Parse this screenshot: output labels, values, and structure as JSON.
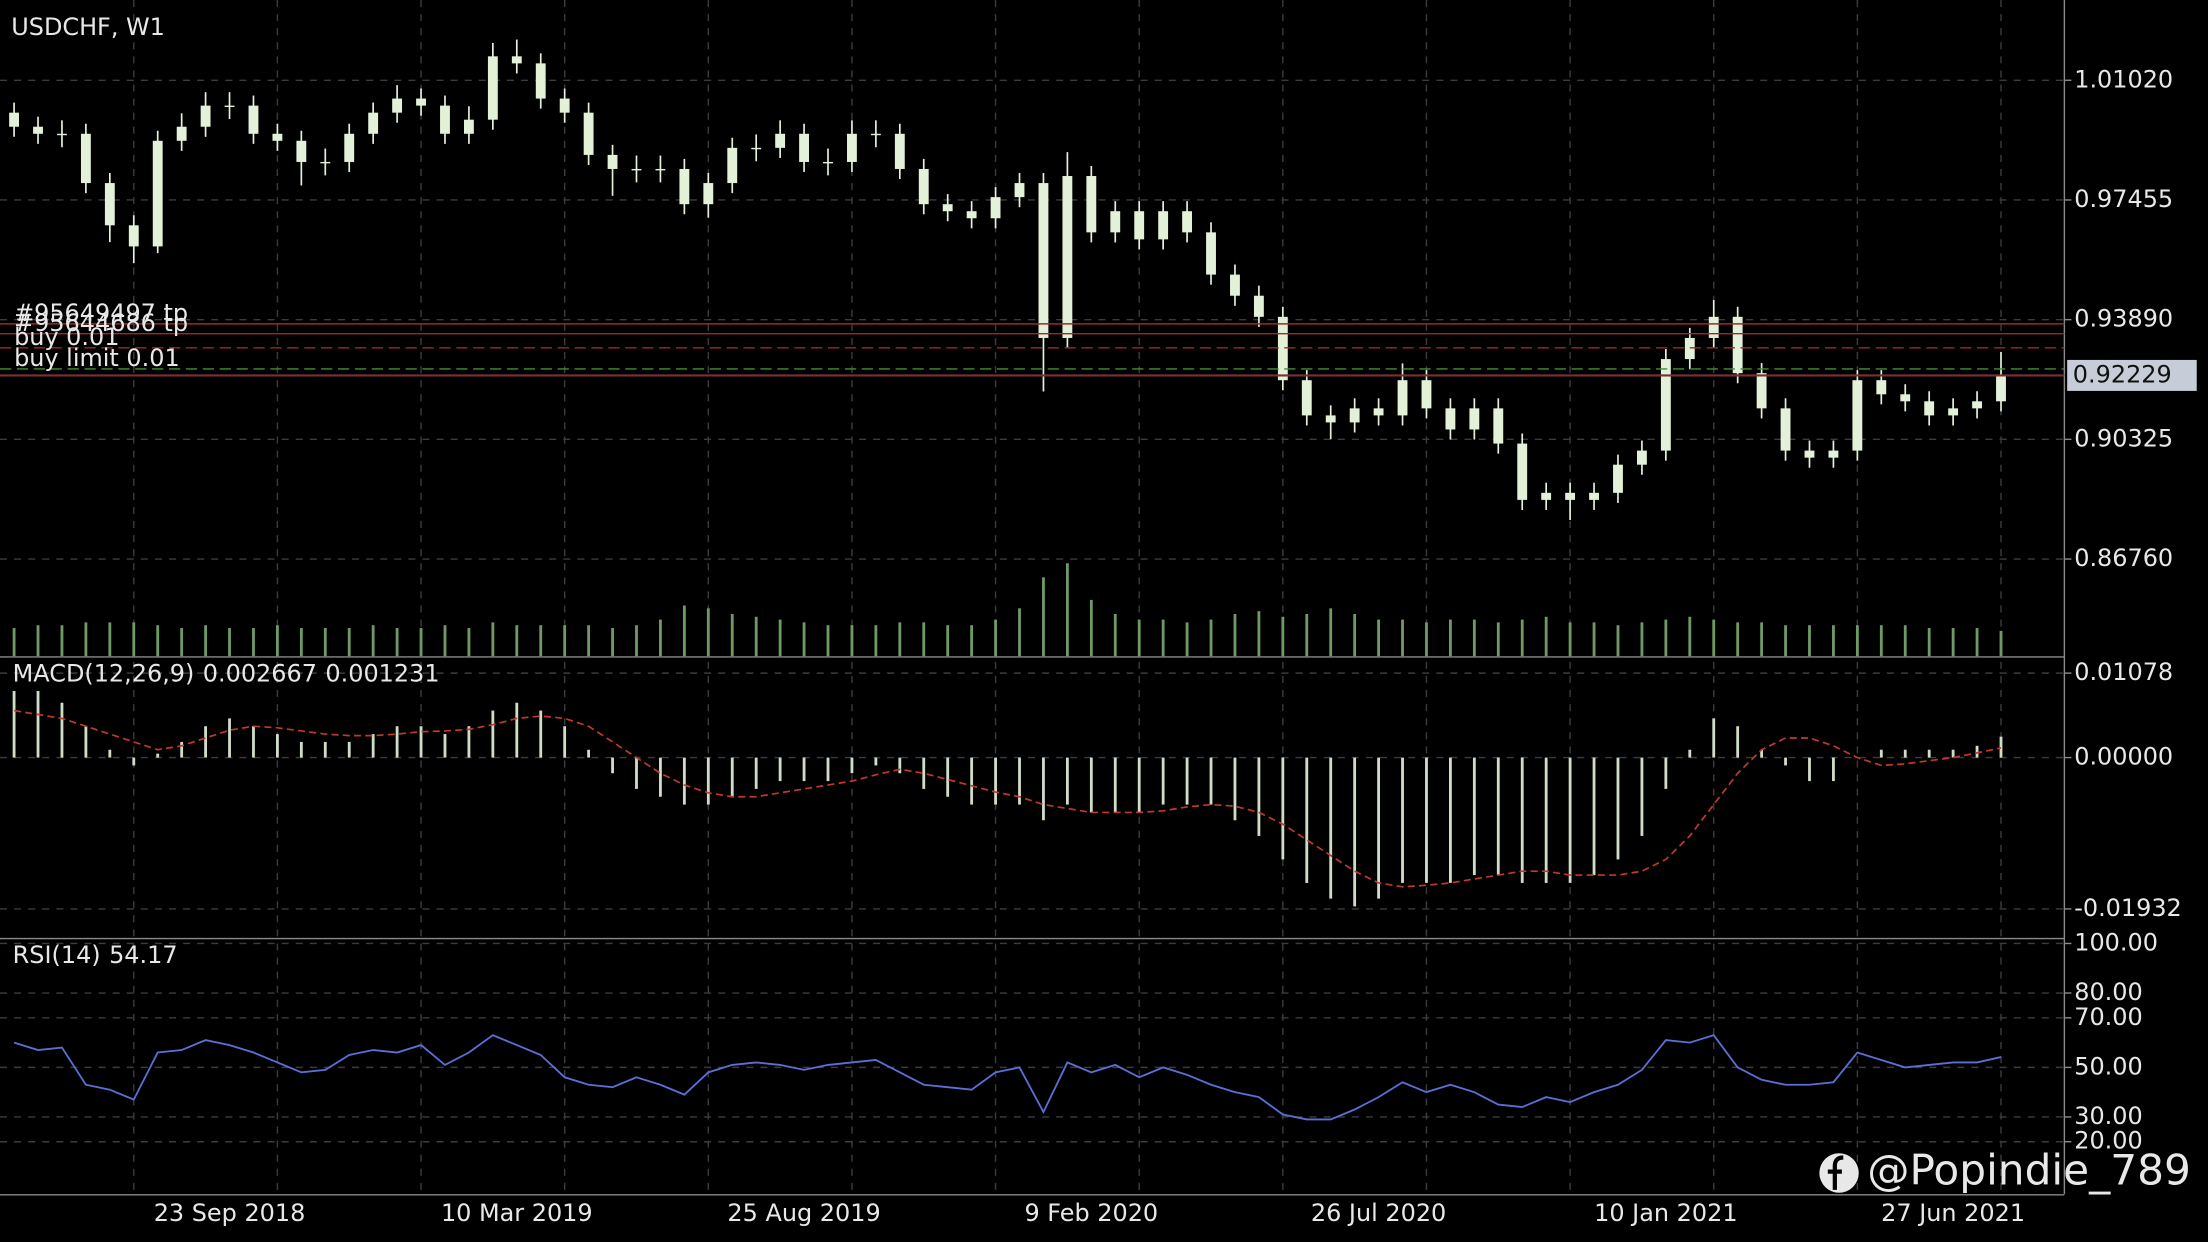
{
  "chart_data": [
    {
      "type": "candlestick",
      "title": "USDCHF, W1",
      "categories": [
        null,
        null,
        null,
        null,
        null,
        null,
        null,
        null,
        null,
        "23 Sep 2018",
        null,
        null,
        null,
        null,
        null,
        null,
        null,
        null,
        null,
        null,
        null,
        "10 Mar 2019",
        null,
        null,
        null,
        null,
        null,
        null,
        null,
        null,
        null,
        null,
        null,
        "25 Aug 2019",
        null,
        null,
        null,
        null,
        null,
        null,
        null,
        null,
        null,
        null,
        null,
        "9 Feb 2020",
        null,
        null,
        null,
        null,
        null,
        null,
        null,
        null,
        null,
        null,
        null,
        "26 Jul 2020",
        null,
        null,
        null,
        null,
        null,
        null,
        null,
        null,
        null,
        null,
        null,
        "10 Jan 2021",
        null,
        null,
        null,
        null,
        null,
        null,
        null,
        null,
        null,
        null,
        null,
        "27 Jun 2021",
        null,
        null
      ],
      "open": [
        1.00055,
        0.99636,
        0.99426,
        0.99426,
        0.97958,
        0.967,
        0.96071,
        0.99217,
        0.99636,
        1.00265,
        1.00265,
        0.99426,
        0.99217,
        0.98587,
        0.98587,
        0.99426,
        1.00055,
        1.00475,
        1.00265,
        0.99426,
        0.99846,
        1.01733,
        1.01523,
        1.00475,
        1.00055,
        0.98797,
        0.98378,
        0.98378,
        0.98378,
        0.97329,
        0.97958,
        0.99007,
        0.99007,
        0.99426,
        0.98587,
        0.98587,
        0.99426,
        0.99426,
        0.98378,
        0.97329,
        0.9712,
        0.9691,
        0.97539,
        0.97958,
        0.93345,
        0.98168,
        0.9649,
        0.9712,
        0.96281,
        0.9712,
        0.9649,
        0.95232,
        0.94603,
        0.93974,
        0.92087,
        0.91038,
        0.90829,
        0.91248,
        0.91038,
        0.92087,
        0.91248,
        0.90619,
        0.91248,
        0.90199,
        0.88522,
        0.88732,
        0.88522,
        0.88732,
        0.8957,
        0.8999,
        0.92716,
        0.93345,
        0.93974,
        0.92296,
        0.91248,
        0.8999,
        0.8978,
        0.8999,
        0.92087,
        0.91667,
        0.91458,
        0.91038,
        0.91248,
        0.91458
      ],
      "high": [
        1.00355,
        0.99936,
        0.99826,
        0.99726,
        0.98258,
        0.97,
        0.99517,
        1.00036,
        1.00665,
        1.00665,
        1.00565,
        0.99726,
        0.99517,
        0.98987,
        0.99726,
        1.00355,
        1.00875,
        1.00775,
        1.00565,
        1.00246,
        1.02133,
        1.02233,
        1.01823,
        1.00775,
        1.00355,
        0.99097,
        0.98778,
        0.98778,
        0.98678,
        0.98258,
        0.99307,
        0.99407,
        0.99826,
        0.99726,
        0.98987,
        0.99826,
        0.99826,
        0.99726,
        0.98678,
        0.97629,
        0.9742,
        0.97839,
        0.98258,
        0.98258,
        0.98881,
        0.98468,
        0.9742,
        0.9742,
        0.9742,
        0.9742,
        0.9679,
        0.95532,
        0.94903,
        0.94274,
        0.92387,
        0.91338,
        0.91548,
        0.91548,
        0.92587,
        0.92387,
        0.91548,
        0.91548,
        0.91548,
        0.90499,
        0.89032,
        0.89032,
        0.89032,
        0.8987,
        0.9029,
        0.93016,
        0.93645,
        0.94474,
        0.94274,
        0.92596,
        0.91548,
        0.9029,
        0.9029,
        0.92387,
        0.92387,
        0.91967,
        0.91758,
        0.91548,
        0.91758,
        0.92929
      ],
      "low": [
        0.99336,
        0.99126,
        0.99026,
        0.97658,
        0.962,
        0.95571,
        0.95871,
        0.98917,
        0.99336,
        0.99865,
        0.99126,
        0.98917,
        0.97887,
        0.98187,
        0.98287,
        0.99126,
        0.99755,
        0.99965,
        0.99126,
        0.99126,
        0.99546,
        1.01223,
        1.00175,
        0.99755,
        0.98497,
        0.97578,
        0.97978,
        0.97978,
        0.97029,
        0.96929,
        0.97658,
        0.98607,
        0.98707,
        0.98287,
        0.98187,
        0.98287,
        0.99026,
        0.98078,
        0.97029,
        0.9682,
        0.9661,
        0.9661,
        0.97239,
        0.91751,
        0.93045,
        0.9619,
        0.9619,
        0.95981,
        0.95981,
        0.9619,
        0.94932,
        0.94303,
        0.93674,
        0.91787,
        0.90738,
        0.90329,
        0.90529,
        0.90738,
        0.90738,
        0.90948,
        0.90319,
        0.90319,
        0.89899,
        0.88222,
        0.88222,
        0.87922,
        0.88222,
        0.88432,
        0.8927,
        0.8969,
        0.92416,
        0.93045,
        0.91996,
        0.90948,
        0.8969,
        0.8948,
        0.8948,
        0.8969,
        0.91367,
        0.91158,
        0.90738,
        0.90738,
        0.90948,
        0.91158
      ],
      "close": [
        0.99636,
        0.99426,
        0.99426,
        0.97958,
        0.967,
        0.96071,
        0.99217,
        0.99636,
        1.00265,
        1.00265,
        0.99426,
        0.99217,
        0.98587,
        0.98587,
        0.99426,
        1.00055,
        1.00475,
        1.00265,
        0.99426,
        0.99846,
        1.01733,
        1.01523,
        1.00475,
        1.00055,
        0.98797,
        0.98378,
        0.98378,
        0.98378,
        0.97329,
        0.97958,
        0.99007,
        0.99007,
        0.99426,
        0.98587,
        0.98587,
        0.99426,
        0.99426,
        0.98378,
        0.97329,
        0.9712,
        0.9691,
        0.97539,
        0.97958,
        0.93345,
        0.98168,
        0.9649,
        0.9712,
        0.96281,
        0.9712,
        0.9649,
        0.95232,
        0.94603,
        0.93974,
        0.92087,
        0.91038,
        0.90829,
        0.91248,
        0.91038,
        0.92087,
        0.91248,
        0.90619,
        0.91248,
        0.90199,
        0.88522,
        0.88732,
        0.88522,
        0.88732,
        0.8957,
        0.8999,
        0.92716,
        0.93345,
        0.93974,
        0.92296,
        0.91248,
        0.8999,
        0.8978,
        0.8999,
        0.92087,
        0.91667,
        0.91458,
        0.91038,
        0.91248,
        0.91458,
        0.92229
      ],
      "volume": [
        20,
        22,
        22,
        24,
        24,
        24,
        22,
        20,
        22,
        20,
        20,
        22,
        20,
        20,
        20,
        22,
        20,
        20,
        22,
        20,
        24,
        22,
        22,
        22,
        22,
        20,
        22,
        26,
        36,
        34,
        30,
        28,
        26,
        24,
        22,
        22,
        22,
        24,
        24,
        22,
        22,
        26,
        34,
        56,
        66,
        40,
        30,
        26,
        26,
        24,
        26,
        30,
        32,
        28,
        30,
        34,
        30,
        26,
        26,
        24,
        26,
        26,
        24,
        26,
        28,
        24,
        24,
        22,
        24,
        26,
        28,
        26,
        24,
        24,
        22,
        22,
        22,
        22,
        22,
        22,
        20,
        20,
        20,
        18
      ],
      "candle_color": "#e3f1d9",
      "volume_color": "#6f9a66",
      "ylim": [
        0.83866,
        1.03201
      ],
      "yticks": [
        {
          "value": 1.0102,
          "label": "1.01020"
        },
        0.97455,
        {
          "value": 0.9389,
          "label": "0.93890"
        },
        0.90325,
        {
          "value": 0.8676,
          "label": "0.86760"
        }
      ],
      "grid": true,
      "current_price": 0.92229,
      "current_price_color": "#7a3030",
      "order_lines": [
        {
          "label": "#95649497 tp",
          "value": 0.93764,
          "color": "#a02828",
          "dashed": false
        },
        {
          "label": "#95644686 tp",
          "value": 0.93471,
          "color": "#a02828",
          "dashed": false
        },
        {
          "label": "buy 0.01",
          "value": 0.93052,
          "color": "#a02828",
          "dashed": true
        },
        {
          "label": "buy limit 0.01",
          "value": 0.92422,
          "color": "#3f8f3f",
          "dashed": true
        }
      ]
    },
    {
      "type": "macd",
      "title": "MACD(12,26,9)",
      "macd": [
        0.0085,
        0.0085,
        0.007,
        0.004,
        0.001,
        -0.001,
        0.0005,
        0.002,
        0.004,
        0.005,
        0.004,
        0.003,
        0.002,
        0.002,
        0.002,
        0.003,
        0.004,
        0.004,
        0.003,
        0.004,
        0.006,
        0.007,
        0.006,
        0.004,
        0.001,
        -0.002,
        -0.004,
        -0.005,
        -0.006,
        -0.006,
        -0.005,
        -0.004,
        -0.003,
        -0.003,
        -0.003,
        -0.002,
        -0.001,
        -0.002,
        -0.004,
        -0.005,
        -0.006,
        -0.006,
        -0.006,
        -0.008,
        -0.006,
        -0.007,
        -0.007,
        -0.007,
        -0.006,
        -0.006,
        -0.006,
        -0.008,
        -0.01,
        -0.013,
        -0.016,
        -0.018,
        -0.019,
        -0.018,
        -0.016,
        -0.016,
        -0.016,
        -0.015,
        -0.015,
        -0.016,
        -0.016,
        -0.016,
        -0.015,
        -0.013,
        -0.01,
        -0.004,
        0.001,
        0.005,
        0.004,
        0.001,
        -0.001,
        -0.003,
        -0.003,
        0.0,
        0.001,
        0.001,
        0.001,
        0.001,
        0.0015,
        0.002667
      ],
      "signal": [
        0.006,
        0.0055,
        0.005,
        0.004,
        0.003,
        0.002,
        0.001,
        0.0015,
        0.0025,
        0.0035,
        0.004,
        0.0038,
        0.0034,
        0.003,
        0.0028,
        0.0028,
        0.003,
        0.0033,
        0.0034,
        0.0036,
        0.0042,
        0.005,
        0.0053,
        0.005,
        0.004,
        0.002,
        0.0,
        -0.002,
        -0.0035,
        -0.0045,
        -0.005,
        -0.005,
        -0.0045,
        -0.004,
        -0.0035,
        -0.003,
        -0.0022,
        -0.0015,
        -0.002,
        -0.0028,
        -0.0036,
        -0.0044,
        -0.005,
        -0.006,
        -0.0065,
        -0.007,
        -0.007,
        -0.007,
        -0.0068,
        -0.0063,
        -0.006,
        -0.0062,
        -0.007,
        -0.0085,
        -0.0105,
        -0.0125,
        -0.0145,
        -0.016,
        -0.0165,
        -0.0163,
        -0.016,
        -0.0155,
        -0.015,
        -0.0145,
        -0.0145,
        -0.015,
        -0.015,
        -0.015,
        -0.0145,
        -0.013,
        -0.01,
        -0.006,
        -0.002,
        0.001,
        0.0025,
        0.0025,
        0.0015,
        0.0,
        -0.001,
        -0.0008,
        -0.0004,
        0.0,
        0.0006,
        0.001231
      ],
      "macd_color": "#cfdcc6",
      "signal_color": "#c0392b",
      "ylim": [
        -0.02301,
        0.01258
      ],
      "yticks": [
        0.01078,
        {
          "value": 0,
          "label": "0.00000"
        },
        -0.01932
      ]
    },
    {
      "type": "line",
      "title": "RSI(14)",
      "values": [
        60,
        57,
        58,
        43,
        41,
        37,
        56,
        57,
        61,
        59,
        56,
        52,
        48,
        49,
        55,
        57,
        56,
        59,
        51,
        56,
        63,
        59,
        55,
        46,
        43,
        42,
        46,
        43,
        39,
        48,
        51,
        52,
        51,
        49,
        51,
        52,
        53,
        48,
        43,
        42,
        41,
        48,
        50,
        32,
        52,
        48,
        51,
        46,
        50,
        47,
        43,
        40,
        38,
        31,
        29,
        29,
        33,
        38,
        44,
        40,
        43,
        40,
        35,
        34,
        38,
        36,
        40,
        43,
        49,
        61,
        60,
        63,
        50,
        45,
        43,
        43,
        44,
        56,
        53,
        50,
        51,
        52,
        52,
        54.17
      ],
      "color": "#5b6fd6",
      "ylim": [
        0,
        100
      ],
      "yticks": [
        {
          "value": 100,
          "label": "100.00"
        },
        {
          "value": 80,
          "label": "80.00"
        },
        {
          "value": 70,
          "label": "70.00"
        },
        {
          "value": 50,
          "label": "50.00"
        },
        {
          "value": 30,
          "label": "30.00"
        },
        {
          "value": 20,
          "label": "20.00"
        }
      ]
    }
  ],
  "watermark": "@Popindie_789"
}
